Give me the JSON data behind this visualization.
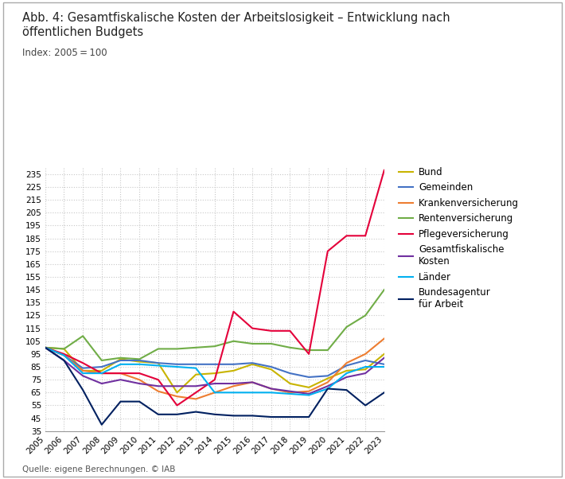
{
  "title_line1": "Abb. 4: Gesamtfiskalische Kosten der Arbeitslosigkeit – Entwicklung nach",
  "title_line2": "öffentlichen Budgets",
  "subtitle": "Index: 2005 = 100",
  "source": "Quelle: eigene Berechnungen. © IAB",
  "years": [
    2005,
    2006,
    2007,
    2008,
    2009,
    2010,
    2011,
    2012,
    2013,
    2014,
    2015,
    2016,
    2017,
    2018,
    2019,
    2020,
    2021,
    2022,
    2023
  ],
  "series": {
    "Bund": {
      "color": "#c8b400",
      "values": [
        100,
        99,
        82,
        82,
        91,
        89,
        88,
        65,
        79,
        80,
        82,
        87,
        83,
        72,
        69,
        76,
        82,
        83,
        95
      ]
    },
    "Gemeinden": {
      "color": "#4472c4",
      "values": [
        100,
        94,
        84,
        85,
        90,
        90,
        88,
        87,
        87,
        87,
        87,
        88,
        85,
        80,
        77,
        78,
        86,
        90,
        87
      ]
    },
    "Krankenversicherung": {
      "color": "#ed7d31",
      "values": [
        100,
        94,
        82,
        80,
        80,
        75,
        66,
        62,
        60,
        65,
        70,
        73,
        68,
        65,
        66,
        73,
        88,
        95,
        107
      ]
    },
    "Rentenversicherung": {
      "color": "#70ad47",
      "values": [
        100,
        99,
        109,
        90,
        92,
        91,
        99,
        99,
        100,
        101,
        105,
        103,
        103,
        100,
        98,
        98,
        116,
        125,
        145
      ]
    },
    "Pflegeversicherung": {
      "color": "#e4003a",
      "values": [
        100,
        95,
        88,
        80,
        80,
        80,
        75,
        55,
        65,
        75,
        128,
        115,
        113,
        113,
        95,
        175,
        187,
        187,
        238
      ]
    },
    "Gesamtfiskalische\nKosten": {
      "color": "#7030a0",
      "values": [
        100,
        90,
        78,
        72,
        75,
        72,
        70,
        70,
        70,
        72,
        72,
        73,
        68,
        66,
        64,
        70,
        77,
        80,
        92
      ]
    },
    "Länder": {
      "color": "#00b0f0",
      "values": [
        100,
        94,
        80,
        80,
        87,
        87,
        86,
        85,
        84,
        65,
        65,
        65,
        65,
        64,
        63,
        68,
        80,
        85,
        85
      ]
    },
    "Bundesagentur\nfür Arbeit": {
      "color": "#002060",
      "values": [
        100,
        90,
        67,
        40,
        58,
        58,
        48,
        48,
        50,
        48,
        47,
        47,
        46,
        46,
        46,
        68,
        67,
        55,
        65
      ]
    }
  },
  "ylim": [
    35,
    240
  ],
  "yticks": [
    35,
    45,
    55,
    65,
    75,
    85,
    95,
    105,
    115,
    125,
    135,
    145,
    155,
    165,
    175,
    185,
    195,
    205,
    215,
    225,
    235
  ],
  "background_color": "#ffffff",
  "grid_color": "#c8c8c8",
  "legend_order": [
    "Bund",
    "Gemeinden",
    "Krankenversicherung",
    "Rentenversicherung",
    "Pflegeversicherung",
    "Gesamtfiskalische\nKosten",
    "Länder",
    "Bundesagentur\nfür Arbeit"
  ]
}
